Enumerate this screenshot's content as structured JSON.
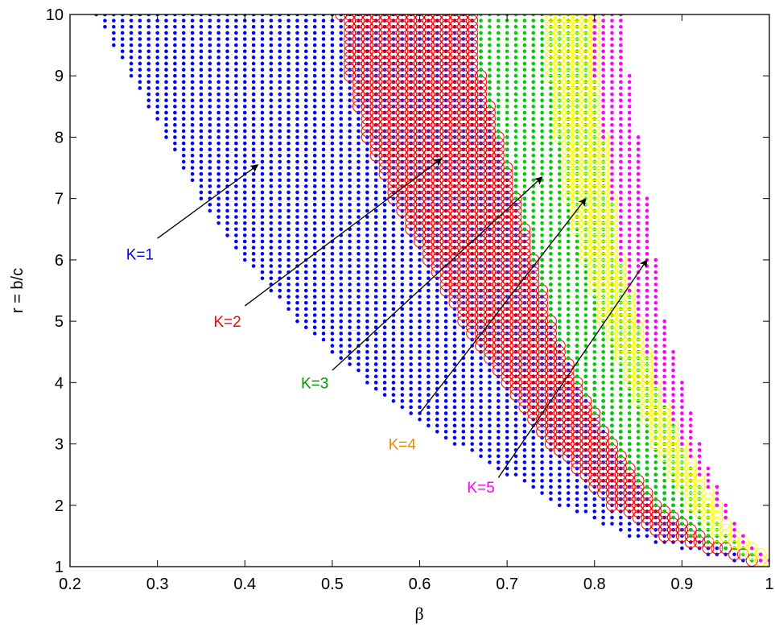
{
  "chart_data": {
    "type": "scatter",
    "title": "",
    "xlabel": "β",
    "ylabel": "r = b/c",
    "xlim": [
      0.2,
      1.0
    ],
    "ylim": [
      1,
      10
    ],
    "xticks": [
      "0.2",
      "0.3",
      "0.4",
      "0.5",
      "0.6",
      "0.7",
      "0.8",
      "0.9",
      "1"
    ],
    "yticks": [
      "1",
      "2",
      "3",
      "4",
      "5",
      "6",
      "7",
      "8",
      "9",
      "10"
    ],
    "grid": false,
    "colors": {
      "k1": "#0000ff",
      "k2": "#ff0000",
      "k3": "#00cc00",
      "k4": "#ffff00",
      "k5": "#ff00ff",
      "label_k3": "#009900",
      "label_k4": "#ee8800",
      "arrow": "#000000"
    },
    "regions": [
      {
        "label": "K=1",
        "marker": "dot",
        "color_key": "k1",
        "left_edge": [
          [
            10,
            0.23
          ],
          [
            9,
            0.27
          ],
          [
            8,
            0.31
          ],
          [
            7,
            0.35
          ],
          [
            6,
            0.4
          ],
          [
            5,
            0.46
          ],
          [
            4,
            0.54
          ],
          [
            3,
            0.64
          ],
          [
            2,
            0.76
          ],
          [
            1.5,
            0.84
          ],
          [
            1.1,
            0.96
          ]
        ],
        "right_edge": [
          [
            10,
            0.66
          ],
          [
            9,
            0.68
          ],
          [
            8,
            0.7
          ],
          [
            7,
            0.72
          ],
          [
            6,
            0.74
          ],
          [
            5,
            0.77
          ],
          [
            4,
            0.8
          ],
          [
            3,
            0.84
          ],
          [
            2,
            0.9
          ],
          [
            1.5,
            0.94
          ],
          [
            1.1,
            0.97
          ]
        ]
      },
      {
        "label": "K=2",
        "marker": "circle",
        "color_key": "k2",
        "left_edge": [
          [
            10,
            0.51
          ],
          [
            9,
            0.52
          ],
          [
            8,
            0.54
          ],
          [
            7,
            0.57
          ],
          [
            6,
            0.61
          ],
          [
            5,
            0.65
          ],
          [
            4,
            0.7
          ],
          [
            3,
            0.75
          ],
          [
            2,
            0.82
          ],
          [
            1.5,
            0.88
          ],
          [
            1.1,
            0.98
          ]
        ],
        "right_edge": [
          [
            10,
            0.66
          ],
          [
            9,
            0.67
          ],
          [
            8,
            0.69
          ],
          [
            7,
            0.71
          ],
          [
            6,
            0.73
          ],
          [
            5,
            0.75
          ],
          [
            4,
            0.78
          ],
          [
            3,
            0.82
          ],
          [
            2,
            0.87
          ],
          [
            1.5,
            0.92
          ],
          [
            1.1,
            0.99
          ]
        ]
      },
      {
        "label": "K=3",
        "marker": "dot",
        "color_key": "k3",
        "left_edge": [
          [
            10,
            0.66
          ],
          [
            9,
            0.67
          ],
          [
            8,
            0.69
          ],
          [
            7,
            0.71
          ],
          [
            6,
            0.73
          ],
          [
            5,
            0.75
          ],
          [
            4,
            0.78
          ],
          [
            3,
            0.82
          ],
          [
            2,
            0.87
          ],
          [
            1.5,
            0.91
          ],
          [
            1.1,
            0.98
          ]
        ],
        "right_edge": [
          [
            10,
            0.8
          ],
          [
            9,
            0.8
          ],
          [
            8,
            0.81
          ],
          [
            7,
            0.82
          ],
          [
            6,
            0.83
          ],
          [
            5,
            0.85
          ],
          [
            4,
            0.87
          ],
          [
            3,
            0.9
          ],
          [
            2,
            0.93
          ],
          [
            1.5,
            0.95
          ],
          [
            1.1,
            0.99
          ]
        ]
      },
      {
        "label": "K=4",
        "marker": "circle",
        "color_key": "k4",
        "left_edge": [
          [
            10,
            0.75
          ],
          [
            9,
            0.75
          ],
          [
            8,
            0.76
          ],
          [
            7,
            0.77
          ],
          [
            6,
            0.79
          ],
          [
            5,
            0.81
          ],
          [
            4,
            0.84
          ],
          [
            3,
            0.87
          ],
          [
            2,
            0.91
          ],
          [
            1.5,
            0.94
          ],
          [
            1.1,
            0.99
          ]
        ],
        "right_edge": [
          [
            10,
            0.8
          ],
          [
            9,
            0.8
          ],
          [
            8,
            0.81
          ],
          [
            7,
            0.82
          ],
          [
            6,
            0.83
          ],
          [
            5,
            0.85
          ],
          [
            4,
            0.87
          ],
          [
            3,
            0.9
          ],
          [
            2,
            0.94
          ],
          [
            1.5,
            0.96
          ],
          [
            1.1,
            1.0
          ]
        ]
      },
      {
        "label": "K=5",
        "marker": "dot",
        "color_key": "k5",
        "left_edge": [
          [
            10,
            0.79
          ],
          [
            9,
            0.8
          ],
          [
            8,
            0.81
          ],
          [
            7,
            0.82
          ],
          [
            6,
            0.83
          ],
          [
            5,
            0.85
          ],
          [
            4,
            0.87
          ],
          [
            3,
            0.9
          ],
          [
            2,
            0.94
          ],
          [
            1.5,
            0.96
          ],
          [
            1.1,
            0.99
          ]
        ],
        "right_edge": [
          [
            10,
            0.83
          ],
          [
            9,
            0.84
          ],
          [
            8,
            0.85
          ],
          [
            7,
            0.86
          ],
          [
            6,
            0.87
          ],
          [
            5,
            0.88
          ],
          [
            4,
            0.9
          ],
          [
            3,
            0.92
          ],
          [
            2,
            0.95
          ],
          [
            1.5,
            0.97
          ],
          [
            1.1,
            1.0
          ]
        ]
      }
    ],
    "annotations": [
      {
        "text": "K=1",
        "color_key": "k1",
        "x": 0.28,
        "y": 6.1,
        "arrow_from": [
          0.3,
          6.35
        ],
        "arrow_to": [
          0.415,
          7.55
        ]
      },
      {
        "text": "K=2",
        "color_key": "k2",
        "x": 0.38,
        "y": 5.0,
        "arrow_from": [
          0.4,
          5.25
        ],
        "arrow_to": [
          0.625,
          7.65
        ]
      },
      {
        "text": "K=3",
        "color_key": "label_k3",
        "x": 0.48,
        "y": 4.0,
        "arrow_from": [
          0.5,
          4.2
        ],
        "arrow_to": [
          0.74,
          7.35
        ]
      },
      {
        "text": "K=4",
        "color_key": "label_k4",
        "x": 0.58,
        "y": 3.0,
        "arrow_from": [
          0.6,
          3.5
        ],
        "arrow_to": [
          0.79,
          7.0
        ]
      },
      {
        "text": "K=5",
        "color_key": "k5",
        "x": 0.67,
        "y": 2.3,
        "arrow_from": [
          0.69,
          2.45
        ],
        "arrow_to": [
          0.86,
          6.0
        ]
      }
    ]
  }
}
